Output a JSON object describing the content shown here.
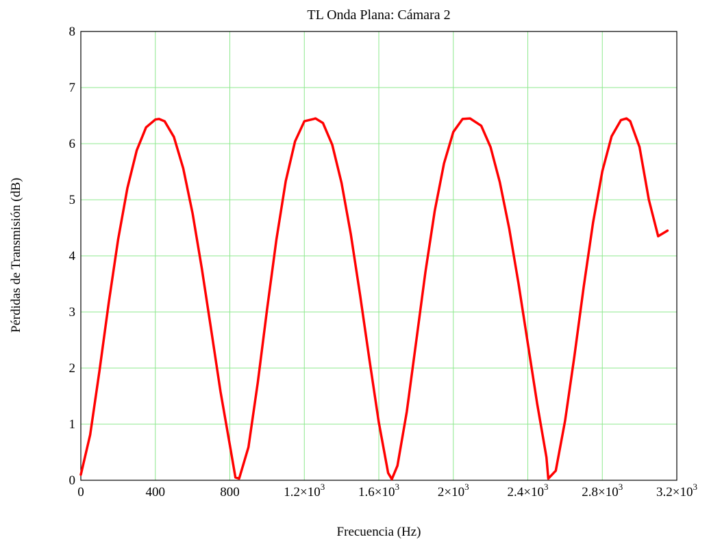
{
  "chart_data": {
    "type": "line",
    "title": "TL Onda Plana: Cámara 2",
    "xlabel": "Frecuencia (Hz)",
    "ylabel": "Pérdidas de Transmisión (dB)",
    "xlim": [
      0,
      3200
    ],
    "ylim": [
      0,
      8
    ],
    "grid": true,
    "x_ticks": [
      {
        "value": 0,
        "mantissa": "0",
        "exponent": ""
      },
      {
        "value": 400,
        "mantissa": "400",
        "exponent": ""
      },
      {
        "value": 800,
        "mantissa": "800",
        "exponent": ""
      },
      {
        "value": 1200,
        "mantissa": "1.2×10",
        "exponent": "3"
      },
      {
        "value": 1600,
        "mantissa": "1.6×10",
        "exponent": "3"
      },
      {
        "value": 2000,
        "mantissa": "2×10",
        "exponent": "3"
      },
      {
        "value": 2400,
        "mantissa": "2.4×10",
        "exponent": "3"
      },
      {
        "value": 2800,
        "mantissa": "2.8×10",
        "exponent": "3"
      },
      {
        "value": 3200,
        "mantissa": "3.2×10",
        "exponent": "3"
      }
    ],
    "y_ticks": [
      "0",
      "1",
      "2",
      "3",
      "4",
      "5",
      "6",
      "7",
      "8"
    ],
    "series": [
      {
        "color": "#ff0000",
        "x": [
          0,
          50,
          100,
          150,
          200,
          250,
          300,
          350,
          400,
          420,
          450,
          500,
          550,
          600,
          650,
          700,
          750,
          800,
          830,
          850,
          900,
          950,
          1000,
          1050,
          1100,
          1150,
          1200,
          1250,
          1260,
          1300,
          1350,
          1400,
          1450,
          1500,
          1550,
          1600,
          1650,
          1670,
          1700,
          1750,
          1800,
          1850,
          1900,
          1950,
          2000,
          2050,
          2090,
          2150,
          2200,
          2250,
          2300,
          2350,
          2400,
          2450,
          2500,
          2510,
          2550,
          2600,
          2650,
          2700,
          2750,
          2800,
          2850,
          2900,
          2930,
          2950,
          3000,
          3050,
          3100,
          3150
        ],
        "y": [
          0.1,
          0.81,
          1.95,
          3.17,
          4.29,
          5.21,
          5.88,
          6.29,
          6.43,
          6.44,
          6.4,
          6.12,
          5.56,
          4.76,
          3.77,
          2.68,
          1.58,
          0.63,
          0.05,
          0.03,
          0.59,
          1.74,
          3.05,
          4.29,
          5.33,
          6.04,
          6.4,
          6.44,
          6.45,
          6.37,
          5.98,
          5.3,
          4.38,
          3.29,
          2.14,
          1.03,
          0.13,
          0.02,
          0.26,
          1.22,
          2.46,
          3.71,
          4.8,
          5.65,
          6.21,
          6.44,
          6.45,
          6.32,
          5.94,
          5.31,
          4.49,
          3.51,
          2.44,
          1.37,
          0.41,
          0.03,
          0.17,
          1.06,
          2.21,
          3.45,
          4.59,
          5.51,
          6.13,
          6.42,
          6.45,
          6.4,
          5.94,
          5.0,
          4.35,
          4.45
        ]
      }
    ]
  }
}
